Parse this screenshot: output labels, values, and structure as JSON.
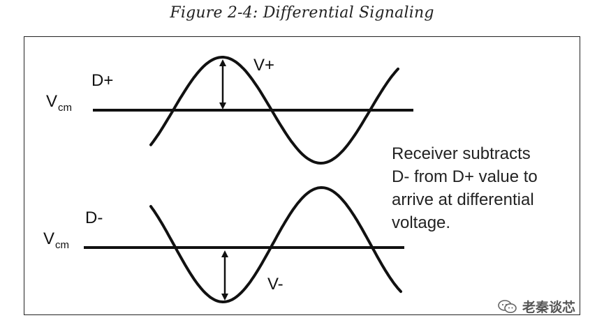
{
  "figure": {
    "title": "Figure 2-4: Differential Signaling"
  },
  "signals": {
    "dplus": {
      "label": "D+",
      "vcm_main": "V",
      "vcm_sub": "cm",
      "amplitude_label": "V+"
    },
    "dminus": {
      "label": "D-",
      "vcm_main": "V",
      "vcm_sub": "cm",
      "amplitude_label": "V-"
    }
  },
  "note": {
    "lines": [
      "Receiver subtracts",
      "D- from D+ value to",
      "arrive at differential",
      "voltage."
    ]
  },
  "watermark": {
    "text": "老秦谈芯",
    "icon": "wechat-logo-icon"
  },
  "colors": {
    "stroke": "#111111",
    "text": "#222222",
    "watermark": "#555555"
  }
}
